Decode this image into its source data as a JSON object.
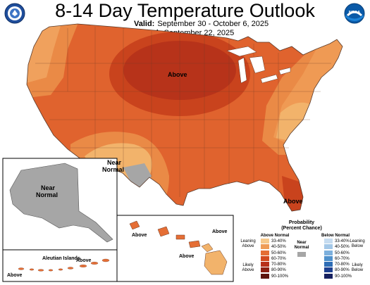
{
  "title": "8-14 Day Temperature Outlook",
  "valid": {
    "label": "Valid:",
    "value": "September 30 - October 6, 2025"
  },
  "issued": {
    "label": "Issued:",
    "value": "September 22, 2025"
  },
  "logos": {
    "left_icon": "doc-seal-icon",
    "right_icon": "noaa-logo-icon",
    "right_text": "NOAA"
  },
  "map": {
    "labels": {
      "conus_above_center": "Above",
      "conus_near_1": "Near",
      "conus_near_2": "Normal",
      "conus_above_florida": "Above",
      "alaska_near_1": "Near",
      "alaska_near_2": "Normal",
      "aleutian_islands": "Aleutian Islands",
      "aleutian_above_left": "Above",
      "aleutian_above_right": "Above",
      "hawaii_above_1": "Above",
      "hawaii_above_2": "Above",
      "hawaii_above_3": "Above"
    },
    "colors": {
      "above_33_40": "#f2b36b",
      "above_40_50": "#ea8a46",
      "above_50_60": "#e0632e",
      "above_60_70": "#c9431d",
      "above_70_80": "#b7331a",
      "near_normal": "#a6a6a6",
      "below_33_40": "#b5d3ec",
      "below_40_50": "#8fbde3"
    }
  },
  "legend": {
    "title_1": "Probability",
    "title_2": "(Percent Chance)",
    "above_header": "Above Normal",
    "below_header": "Below Normal",
    "near_1": "Near",
    "near_2": "Normal",
    "leaning_above_1": "Leaning",
    "leaning_above_2": "Above",
    "likely_above_1": "Likely",
    "likely_above_2": "Above",
    "leaning_below_1": "Leaning",
    "leaning_below_2": "Below",
    "likely_below_1": "Likely",
    "likely_below_2": "Below",
    "above_items": [
      {
        "label": "33-40%",
        "color": "#f6c98b"
      },
      {
        "label": "40-50%",
        "color": "#ef9d57"
      },
      {
        "label": "50-60%",
        "color": "#e56e35"
      },
      {
        "label": "60-70%",
        "color": "#d24a20"
      },
      {
        "label": "70-80%",
        "color": "#b8301a"
      },
      {
        "label": "80-90%",
        "color": "#8e2012"
      },
      {
        "label": "90-100%",
        "color": "#5e140c"
      }
    ],
    "below_items": [
      {
        "label": "33-40%",
        "color": "#c6dcf0"
      },
      {
        "label": "40-50%",
        "color": "#a4c8e8"
      },
      {
        "label": "50-60%",
        "color": "#7db0dd"
      },
      {
        "label": "60-70%",
        "color": "#4f91cc"
      },
      {
        "label": "70-80%",
        "color": "#2e6db5"
      },
      {
        "label": "80-90%",
        "color": "#1d3f8f"
      },
      {
        "label": "90-100%",
        "color": "#16205f"
      }
    ],
    "near_color": "#a6a6a6"
  }
}
